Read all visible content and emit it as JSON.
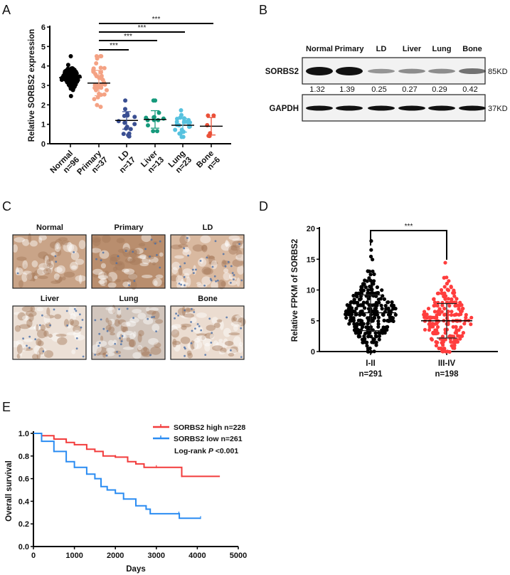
{
  "panels": {
    "a": "A",
    "b": "B",
    "c": "C",
    "d": "D",
    "e": "E"
  },
  "chart_data": [
    {
      "panel": "A",
      "type": "scatter",
      "ylabel": "Relative SORBS2 expression",
      "ylim": [
        0,
        6
      ],
      "yticks": [
        "0",
        "1",
        "2",
        "3",
        "4",
        "5",
        "6"
      ],
      "categories": [
        {
          "name": "Normal",
          "n": "n=96",
          "color": "#000000",
          "mean": 3.4,
          "sd": 0.32,
          "min": 2.45,
          "max": 4.5,
          "count": 96
        },
        {
          "name": "Primary",
          "n": "n=37",
          "color": "#f4a284",
          "mean": 3.12,
          "sd": 0.65,
          "min": 1.9,
          "max": 4.5,
          "count": 37
        },
        {
          "name": "LD",
          "n": "n=17",
          "color": "#3a4f92",
          "mean": 1.2,
          "sd": 0.45,
          "min": 0.38,
          "max": 2.22,
          "count": 17
        },
        {
          "name": "Liver",
          "n": "n=13",
          "color": "#169a7c",
          "mean": 1.25,
          "sd": 0.45,
          "min": 0.65,
          "max": 2.22,
          "count": 13
        },
        {
          "name": "Lung",
          "n": "n=23",
          "color": "#57c2df",
          "mean": 0.95,
          "sd": 0.35,
          "min": 0.35,
          "max": 1.72,
          "count": 23
        },
        {
          "name": "Bone",
          "n": "n=6",
          "color": "#ea5038",
          "mean": 0.9,
          "sd": 0.45,
          "min": 0.4,
          "max": 1.45,
          "count": 6
        }
      ],
      "significance": [
        {
          "from": "Primary",
          "to": "LD",
          "label": "***"
        },
        {
          "from": "Primary",
          "to": "Liver",
          "label": "***"
        },
        {
          "from": "Primary",
          "to": "Lung",
          "label": "***"
        },
        {
          "from": "Primary",
          "to": "Bone",
          "label": "***"
        }
      ]
    },
    {
      "panel": "B",
      "type": "table",
      "lanes": [
        "Normal",
        "Primary",
        "LD",
        "Liver",
        "Lung",
        "Bone"
      ],
      "rows": [
        {
          "label": "SORBS2",
          "size": "85KD",
          "intensity": [
            1.0,
            1.0,
            0.3,
            0.35,
            0.35,
            0.5
          ]
        },
        {
          "label": "GAPDH",
          "size": "37KD",
          "intensity": [
            1.0,
            1.0,
            1.0,
            1.0,
            1.0,
            1.0
          ]
        }
      ],
      "quantification": [
        "1.32",
        "1.39",
        "0.25",
        "0.27",
        "0.29",
        "0.42"
      ]
    },
    {
      "panel": "C",
      "type": "images",
      "images": [
        {
          "title": "Normal",
          "tone": "#c9a488",
          "nuclei": 0.1
        },
        {
          "title": "Primary",
          "tone": "#b98e6e",
          "nuclei": 0.4
        },
        {
          "title": "LD",
          "tone": "#d9b9a0",
          "nuclei": 0.8
        },
        {
          "title": "Liver",
          "tone": "#ece0d6",
          "nuclei": 0.5
        },
        {
          "title": "Lung",
          "tone": "#d2c6bd",
          "nuclei": 0.6
        },
        {
          "title": "Bone",
          "tone": "#ebdcd0",
          "nuclei": 0.6
        }
      ]
    },
    {
      "panel": "D",
      "type": "scatter",
      "ylabel": "Relative FPKM of SORBS2",
      "ylim": [
        0,
        20
      ],
      "yticks": [
        "0",
        "5",
        "10",
        "15",
        "20"
      ],
      "categories": [
        {
          "name": "I-II",
          "n": "n=291",
          "color": "#000000",
          "mean": 6.3,
          "sd": 2.9,
          "min": 0.2,
          "max": 17.8,
          "count": 291
        },
        {
          "name": "III-IV",
          "n": "n=198",
          "color": "#ff3d3d",
          "mean": 5.0,
          "sd": 2.8,
          "min": 0.1,
          "max": 14.3,
          "count": 198
        }
      ],
      "significance": [
        {
          "from": "I-II",
          "to": "III-IV",
          "label": "***"
        }
      ]
    },
    {
      "panel": "E",
      "type": "line",
      "xlabel": "Days",
      "ylabel": "Overall survival",
      "xlim": [
        0,
        5000
      ],
      "ylim": [
        0,
        1.0
      ],
      "xticks": [
        "0",
        "1000",
        "2000",
        "3000",
        "4000",
        "5000"
      ],
      "yticks": [
        "0.0",
        "0.2",
        "0.4",
        "0.6",
        "0.8",
        "1.0"
      ],
      "annotation": {
        "prefix": "Log-rank ",
        "p": "P",
        "suffix": " <0.001"
      },
      "series": [
        {
          "name": "SORBS2 high n=228",
          "color": "#f23c3c",
          "points": [
            [
              0,
              1.0
            ],
            [
              200,
              0.98
            ],
            [
              500,
              0.95
            ],
            [
              800,
              0.92
            ],
            [
              1000,
              0.9
            ],
            [
              1300,
              0.86
            ],
            [
              1500,
              0.84
            ],
            [
              1700,
              0.8
            ],
            [
              2000,
              0.79
            ],
            [
              2300,
              0.75
            ],
            [
              2500,
              0.73
            ],
            [
              2700,
              0.7
            ],
            [
              3000,
              0.7
            ],
            [
              3600,
              0.7
            ],
            [
              3620,
              0.62
            ],
            [
              4550,
              0.62
            ]
          ]
        },
        {
          "name": "SORBS2 low n=261",
          "color": "#2a8cf2",
          "points": [
            [
              0,
              1.0
            ],
            [
              200,
              0.93
            ],
            [
              500,
              0.84
            ],
            [
              800,
              0.75
            ],
            [
              1000,
              0.7
            ],
            [
              1300,
              0.64
            ],
            [
              1500,
              0.6
            ],
            [
              1650,
              0.53
            ],
            [
              1800,
              0.5
            ],
            [
              2000,
              0.47
            ],
            [
              2200,
              0.42
            ],
            [
              2500,
              0.36
            ],
            [
              2750,
              0.33
            ],
            [
              2850,
              0.29
            ],
            [
              3550,
              0.29
            ],
            [
              3560,
              0.25
            ],
            [
              4080,
              0.25
            ]
          ]
        }
      ]
    }
  ]
}
